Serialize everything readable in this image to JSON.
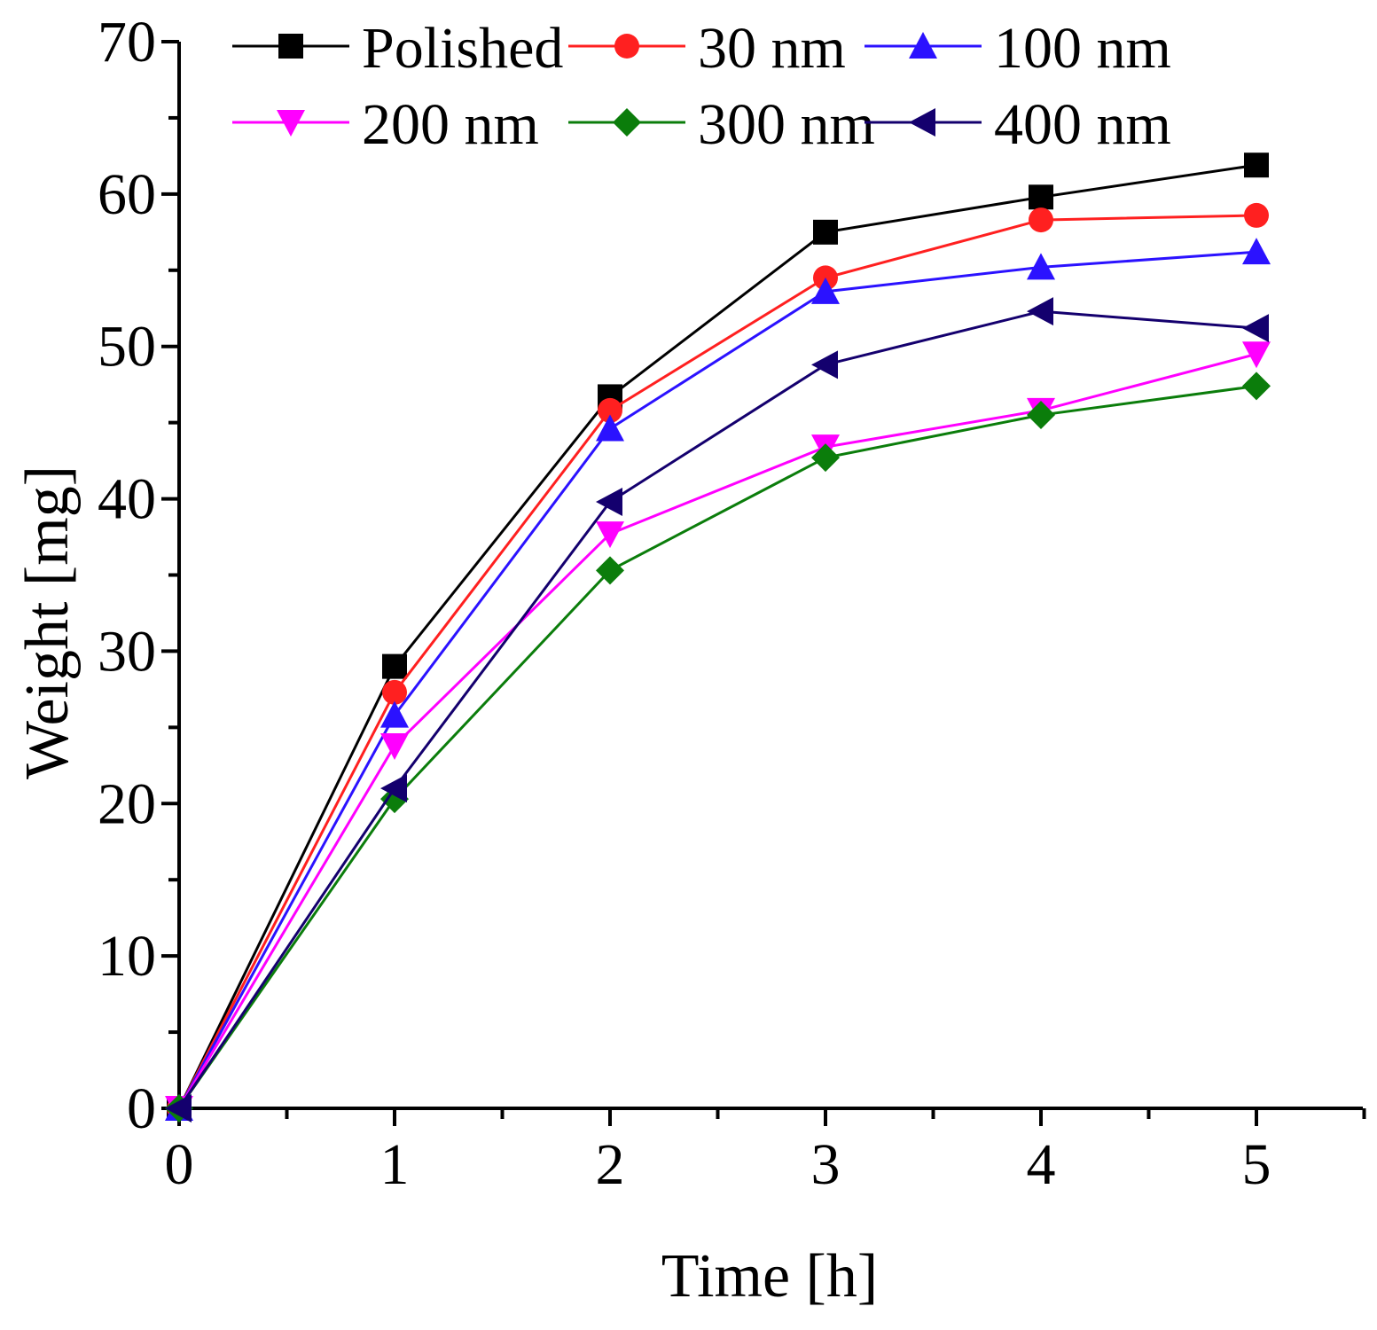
{
  "chart_data": {
    "type": "line",
    "title": "",
    "xlabel": "Time [h]",
    "ylabel": "Weight [mg]",
    "xlim": [
      0,
      5.5
    ],
    "ylim": [
      0,
      70
    ],
    "xticks": [
      0,
      1,
      2,
      3,
      4,
      5
    ],
    "yticks": [
      0,
      10,
      20,
      30,
      40,
      50,
      60,
      70
    ],
    "grid": false,
    "legend_position": "top",
    "x": [
      0,
      1,
      2,
      3,
      4,
      5
    ],
    "series": [
      {
        "name": "Polished",
        "color": "#000000",
        "marker": "square",
        "values": [
          0,
          29.0,
          46.7,
          57.5,
          59.8,
          61.9
        ]
      },
      {
        "name": "30 nm",
        "color": "#ff2020",
        "marker": "circle",
        "values": [
          0,
          27.3,
          45.8,
          54.5,
          58.3,
          58.6
        ]
      },
      {
        "name": "100 nm",
        "color": "#2b12ff",
        "marker": "triangle-up",
        "values": [
          0,
          25.8,
          44.6,
          53.6,
          55.2,
          56.2
        ]
      },
      {
        "name": "200 nm",
        "color": "#ff00ff",
        "marker": "triangle-down",
        "values": [
          0,
          23.8,
          37.7,
          43.4,
          45.8,
          49.5
        ]
      },
      {
        "name": "300 nm",
        "color": "#0b7d0b",
        "marker": "diamond",
        "values": [
          0,
          20.3,
          35.3,
          42.7,
          45.5,
          47.4
        ]
      },
      {
        "name": "400 nm",
        "color": "#14006e",
        "marker": "triangle-left",
        "values": [
          0,
          21.0,
          39.8,
          48.8,
          52.3,
          51.2
        ]
      }
    ]
  }
}
